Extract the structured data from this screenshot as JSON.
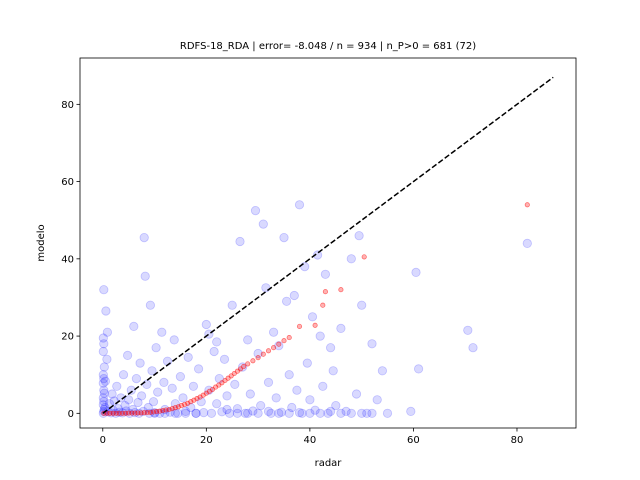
{
  "chart_data": {
    "type": "scatter",
    "title": "RDFS-18_RDA | error= -8.048 / n = 934 | n_P>0 = 681 (72)",
    "xlabel": "radar",
    "ylabel": "modelo",
    "xlim": [
      -4.4,
      91.4
    ],
    "ylim": [
      -3.8,
      92.0
    ],
    "xticks": [
      0,
      20,
      40,
      60,
      80
    ],
    "yticks": [
      0,
      20,
      40,
      60,
      80
    ],
    "grid": false,
    "legend": "none",
    "identity_line": {
      "from": [
        0,
        0
      ],
      "to": [
        87,
        87
      ],
      "style": "dashed",
      "color": "#000000"
    },
    "series": [
      {
        "marker": "large-circle",
        "color": "#0000ff",
        "opacity": 0.15,
        "points": [
          [
            0.1,
            0.0
          ],
          [
            0.2,
            0.5
          ],
          [
            0.3,
            1.0
          ],
          [
            0.1,
            2.2
          ],
          [
            0.2,
            3.1
          ],
          [
            0.1,
            4.0
          ],
          [
            0.3,
            5.2
          ],
          [
            0.2,
            6.0
          ],
          [
            0.1,
            7.8
          ],
          [
            0.2,
            9.0
          ],
          [
            0.1,
            10.0
          ],
          [
            0.3,
            12.0
          ],
          [
            0.1,
            16.0
          ],
          [
            0.2,
            18.0
          ],
          [
            0.1,
            19.5
          ],
          [
            0.2,
            32.0
          ],
          [
            0.6,
            26.5
          ],
          [
            0.9,
            21.0
          ],
          [
            0.8,
            14.0
          ],
          [
            0.5,
            8.3
          ],
          [
            0.4,
            1.5
          ],
          [
            1.0,
            0.4
          ],
          [
            1.3,
            2.5
          ],
          [
            1.6,
            0.1
          ],
          [
            1.8,
            5.0
          ],
          [
            2.0,
            0.8
          ],
          [
            2.2,
            3.2
          ],
          [
            2.5,
            0.0
          ],
          [
            2.7,
            7.0
          ],
          [
            3.0,
            1.2
          ],
          [
            3.2,
            0.3
          ],
          [
            3.5,
            4.0
          ],
          [
            3.8,
            0.1
          ],
          [
            4.0,
            10.0
          ],
          [
            4.3,
            2.0
          ],
          [
            4.5,
            0.6
          ],
          [
            4.8,
            15.0
          ],
          [
            5.0,
            3.5
          ],
          [
            5.2,
            0.0
          ],
          [
            5.5,
            6.0
          ],
          [
            5.8,
            1.0
          ],
          [
            6.0,
            22.5
          ],
          [
            6.2,
            0.2
          ],
          [
            6.5,
            9.0
          ],
          [
            6.8,
            2.8
          ],
          [
            7.0,
            0.0
          ],
          [
            7.2,
            13.0
          ],
          [
            7.5,
            4.5
          ],
          [
            7.8,
            0.5
          ],
          [
            8.0,
            45.5
          ],
          [
            8.2,
            35.5
          ],
          [
            8.5,
            7.5
          ],
          [
            8.8,
            1.5
          ],
          [
            9.0,
            0.0
          ],
          [
            9.2,
            28.0
          ],
          [
            9.5,
            11.0
          ],
          [
            9.8,
            3.0
          ],
          [
            10.0,
            0.2
          ],
          [
            10.3,
            17.0
          ],
          [
            10.6,
            5.5
          ],
          [
            11.0,
            0.0
          ],
          [
            11.4,
            21.0
          ],
          [
            11.8,
            8.0
          ],
          [
            12.0,
            1.0
          ],
          [
            12.5,
            13.5
          ],
          [
            13.0,
            0.3
          ],
          [
            13.4,
            6.5
          ],
          [
            13.8,
            19.0
          ],
          [
            14.0,
            2.5
          ],
          [
            14.5,
            0.0
          ],
          [
            15.0,
            9.5
          ],
          [
            15.5,
            4.0
          ],
          [
            16.0,
            0.5
          ],
          [
            16.5,
            14.5
          ],
          [
            17.0,
            1.5
          ],
          [
            17.5,
            7.0
          ],
          [
            18.0,
            0.0
          ],
          [
            18.5,
            11.5
          ],
          [
            19.0,
            3.0
          ],
          [
            19.5,
            0.2
          ],
          [
            20.0,
            23.0
          ],
          [
            20.5,
            6.0
          ],
          [
            21.0,
            0.0
          ],
          [
            21.5,
            16.0
          ],
          [
            22.0,
            2.5
          ],
          [
            22.5,
            9.0
          ],
          [
            23.0,
            0.4
          ],
          [
            23.5,
            14.0
          ],
          [
            24.0,
            4.5
          ],
          [
            24.5,
            0.0
          ],
          [
            25.0,
            28.0
          ],
          [
            25.5,
            7.5
          ],
          [
            26.0,
            1.2
          ],
          [
            26.5,
            44.5
          ],
          [
            27.0,
            12.0
          ],
          [
            27.5,
            0.0
          ],
          [
            28.0,
            19.0
          ],
          [
            28.5,
            5.0
          ],
          [
            29.0,
            0.6
          ],
          [
            29.5,
            52.5
          ],
          [
            30.0,
            15.5
          ],
          [
            30.5,
            2.0
          ],
          [
            31.0,
            49.0
          ],
          [
            31.5,
            32.5
          ],
          [
            32.0,
            8.0
          ],
          [
            32.5,
            0.0
          ],
          [
            33.0,
            21.0
          ],
          [
            33.5,
            4.0
          ],
          [
            34.0,
            17.5
          ],
          [
            34.5,
            0.3
          ],
          [
            35.0,
            45.5
          ],
          [
            35.5,
            29.0
          ],
          [
            36.0,
            10.0
          ],
          [
            36.5,
            1.5
          ],
          [
            37.0,
            30.5
          ],
          [
            37.5,
            6.0
          ],
          [
            38.0,
            54.0
          ],
          [
            38.5,
            0.0
          ],
          [
            39.0,
            38.0
          ],
          [
            39.5,
            13.0
          ],
          [
            40.0,
            3.5
          ],
          [
            40.5,
            25.0
          ],
          [
            41.0,
            0.8
          ],
          [
            41.5,
            41.0
          ],
          [
            42.0,
            20.0
          ],
          [
            42.5,
            7.0
          ],
          [
            43.0,
            36.0
          ],
          [
            43.5,
            0.0
          ],
          [
            44.0,
            17.0
          ],
          [
            44.5,
            11.0
          ],
          [
            45.0,
            2.0
          ],
          [
            46.0,
            22.0
          ],
          [
            47.0,
            0.5
          ],
          [
            48.0,
            40.0
          ],
          [
            49.0,
            5.0
          ],
          [
            49.5,
            46.0
          ],
          [
            50.0,
            28.0
          ],
          [
            51.0,
            0.0
          ],
          [
            52.0,
            18.0
          ],
          [
            53.0,
            3.5
          ],
          [
            54.0,
            11.0
          ],
          [
            55.0,
            0.0
          ],
          [
            59.5,
            0.5
          ],
          [
            60.5,
            36.5
          ],
          [
            61.0,
            11.5
          ],
          [
            70.5,
            21.5
          ],
          [
            71.5,
            17.0
          ],
          [
            82.0,
            44.0
          ],
          [
            20.5,
            20.5
          ],
          [
            22.0,
            18.5
          ],
          [
            24.0,
            1.0
          ],
          [
            26.0,
            0.0
          ],
          [
            28.0,
            0.0
          ],
          [
            30.0,
            0.0
          ],
          [
            32.0,
            0.5
          ],
          [
            34.0,
            0.0
          ],
          [
            36.0,
            0.0
          ],
          [
            38.0,
            0.2
          ],
          [
            40.0,
            0.0
          ],
          [
            42.0,
            0.0
          ],
          [
            44.0,
            0.5
          ],
          [
            46.0,
            0.0
          ],
          [
            48.0,
            0.0
          ],
          [
            50.0,
            0.0
          ],
          [
            52.0,
            0.0
          ],
          [
            18.0,
            0.0
          ],
          [
            16.0,
            0.0
          ],
          [
            14.0,
            0.0
          ],
          [
            12.0,
            0.0
          ],
          [
            10.0,
            0.0
          ]
        ]
      },
      {
        "marker": "small-circle",
        "color": "#ff0000",
        "opacity": 0.3,
        "points": [
          [
            0.2,
            0.0
          ],
          [
            0.8,
            0.0
          ],
          [
            1.4,
            0.0
          ],
          [
            2.0,
            0.0
          ],
          [
            2.6,
            0.0
          ],
          [
            3.2,
            0.0
          ],
          [
            3.8,
            0.0
          ],
          [
            4.4,
            0.0
          ],
          [
            5.0,
            0.05
          ],
          [
            5.6,
            0.05
          ],
          [
            6.2,
            0.05
          ],
          [
            6.8,
            0.1
          ],
          [
            7.4,
            0.1
          ],
          [
            8.0,
            0.15
          ],
          [
            8.6,
            0.2
          ],
          [
            9.2,
            0.25
          ],
          [
            9.8,
            0.35
          ],
          [
            10.4,
            0.45
          ],
          [
            11.0,
            0.55
          ],
          [
            11.6,
            0.7
          ],
          [
            12.2,
            0.85
          ],
          [
            12.8,
            1.0
          ],
          [
            13.4,
            1.2
          ],
          [
            14.0,
            1.45
          ],
          [
            14.6,
            1.7
          ],
          [
            15.2,
            2.0
          ],
          [
            15.8,
            2.3
          ],
          [
            16.4,
            2.6
          ],
          [
            17.0,
            3.0
          ],
          [
            17.6,
            3.4
          ],
          [
            18.2,
            3.8
          ],
          [
            18.8,
            4.2
          ],
          [
            19.4,
            4.7
          ],
          [
            20.0,
            5.2
          ],
          [
            20.6,
            5.7
          ],
          [
            21.2,
            6.2
          ],
          [
            21.8,
            6.8
          ],
          [
            22.4,
            7.3
          ],
          [
            23.0,
            7.9
          ],
          [
            23.6,
            8.5
          ],
          [
            24.2,
            9.1
          ],
          [
            24.8,
            9.7
          ],
          [
            25.4,
            10.3
          ],
          [
            26.0,
            10.9
          ],
          [
            26.6,
            11.5
          ],
          [
            27.2,
            12.1
          ],
          [
            28.0,
            12.8
          ],
          [
            29.0,
            13.6
          ],
          [
            30.0,
            14.4
          ],
          [
            31.0,
            15.3
          ],
          [
            32.0,
            16.2
          ],
          [
            33.0,
            17.0
          ],
          [
            34.0,
            17.9
          ],
          [
            35.0,
            18.8
          ],
          [
            36.0,
            19.6
          ],
          [
            38.0,
            22.5
          ],
          [
            41.0,
            22.8
          ],
          [
            42.5,
            28.0
          ],
          [
            43.0,
            31.5
          ],
          [
            46.0,
            32.0
          ],
          [
            50.5,
            40.5
          ],
          [
            82.0,
            54.0
          ]
        ]
      }
    ]
  }
}
